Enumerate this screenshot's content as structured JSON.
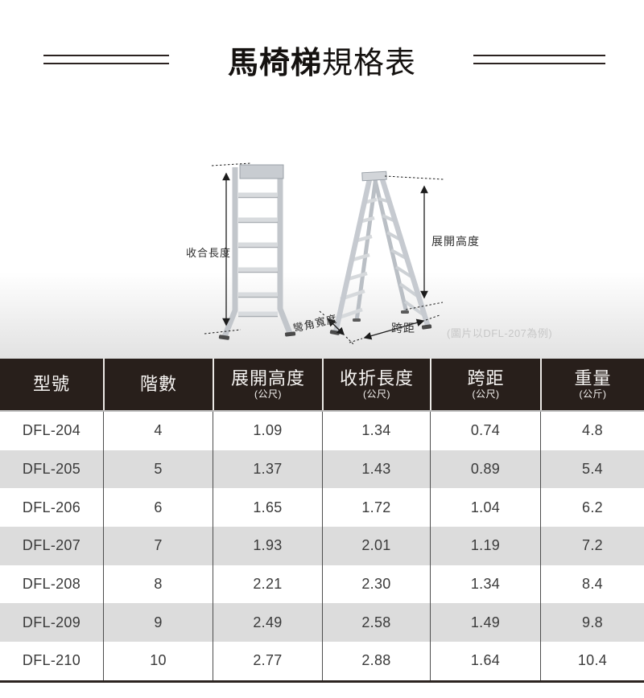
{
  "title": {
    "bold": "馬椅梯",
    "regular": "規格表"
  },
  "illustration": {
    "labels": {
      "folded_length": "收合長度",
      "open_height": "展開高度",
      "corner_width": "彎角寬度",
      "span": "跨距"
    },
    "note": "(圖片以DFL-207為例)"
  },
  "table": {
    "columns": [
      {
        "label": "型號",
        "unit": ""
      },
      {
        "label": "階數",
        "unit": ""
      },
      {
        "label": "展開高度",
        "unit": "(公尺)"
      },
      {
        "label": "收折長度",
        "unit": "(公尺)"
      },
      {
        "label": "跨距",
        "unit": "(公尺)"
      },
      {
        "label": "重量",
        "unit": "(公斤)"
      }
    ],
    "rows": [
      [
        "DFL-204",
        "4",
        "1.09",
        "1.34",
        "0.74",
        "4.8"
      ],
      [
        "DFL-205",
        "5",
        "1.37",
        "1.43",
        "0.89",
        "5.4"
      ],
      [
        "DFL-206",
        "6",
        "1.65",
        "1.72",
        "1.04",
        "6.2"
      ],
      [
        "DFL-207",
        "7",
        "1.93",
        "2.01",
        "1.19",
        "7.2"
      ],
      [
        "DFL-208",
        "8",
        "2.21",
        "2.30",
        "1.34",
        "8.4"
      ],
      [
        "DFL-209",
        "9",
        "2.49",
        "2.58",
        "1.49",
        "9.8"
      ],
      [
        "DFL-210",
        "10",
        "2.77",
        "2.88",
        "1.64",
        "10.4"
      ]
    ]
  },
  "colors": {
    "header_bg": "#281f1b",
    "row_alt": "#dcdcdc",
    "rule_dark": "#2b2220",
    "note_gray": "#c7c7c7"
  }
}
